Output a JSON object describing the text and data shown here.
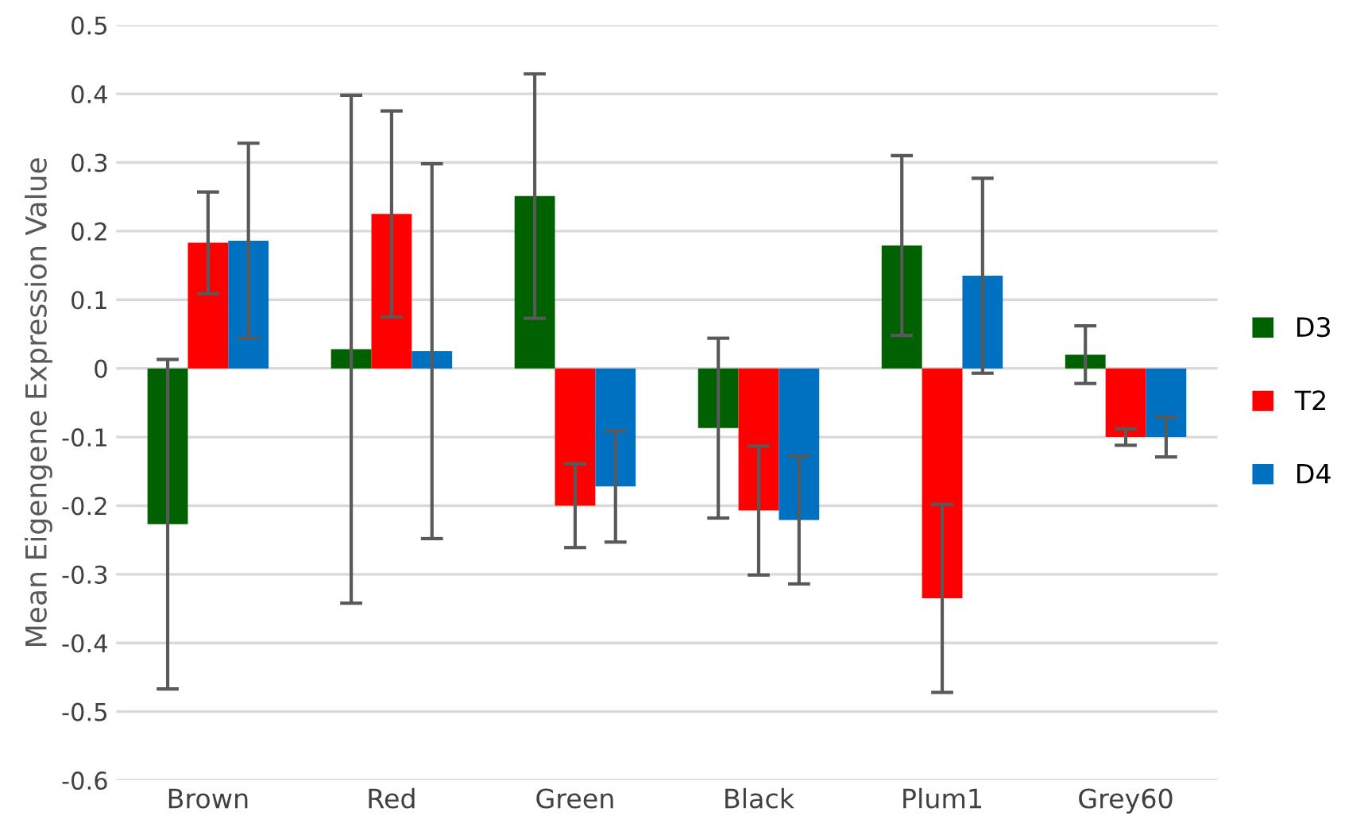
{
  "chart_data": {
    "type": "bar",
    "ylabel": "Mean Eigengene Expression Value",
    "categories": [
      "Brown",
      "Red",
      "Green",
      "Black",
      "Plum1",
      "Grey60"
    ],
    "series": [
      {
        "name": "D3",
        "color": "#006100",
        "values": [
          -0.227,
          0.028,
          0.251,
          -0.087,
          0.179,
          0.02
        ],
        "errors": [
          0.24,
          0.37,
          0.178,
          0.131,
          0.131,
          0.042
        ]
      },
      {
        "name": "T2",
        "color": "#ff0000",
        "values": [
          0.183,
          0.225,
          -0.2,
          -0.207,
          -0.335,
          -0.1
        ],
        "errors": [
          0.074,
          0.15,
          0.061,
          0.094,
          0.137,
          0.012
        ]
      },
      {
        "name": "D4",
        "color": "#0070c0",
        "values": [
          0.186,
          0.025,
          -0.172,
          -0.221,
          0.135,
          -0.1
        ],
        "errors": [
          0.142,
          0.273,
          0.081,
          0.093,
          0.142,
          0.029
        ]
      }
    ],
    "ylim": [
      -0.6,
      0.5
    ],
    "yticks": [
      -0.6,
      -0.5,
      -0.4,
      -0.3,
      -0.2,
      -0.1,
      0,
      0.1,
      0.2,
      0.3,
      0.4,
      0.5
    ],
    "grid": "y",
    "legend": "right"
  }
}
